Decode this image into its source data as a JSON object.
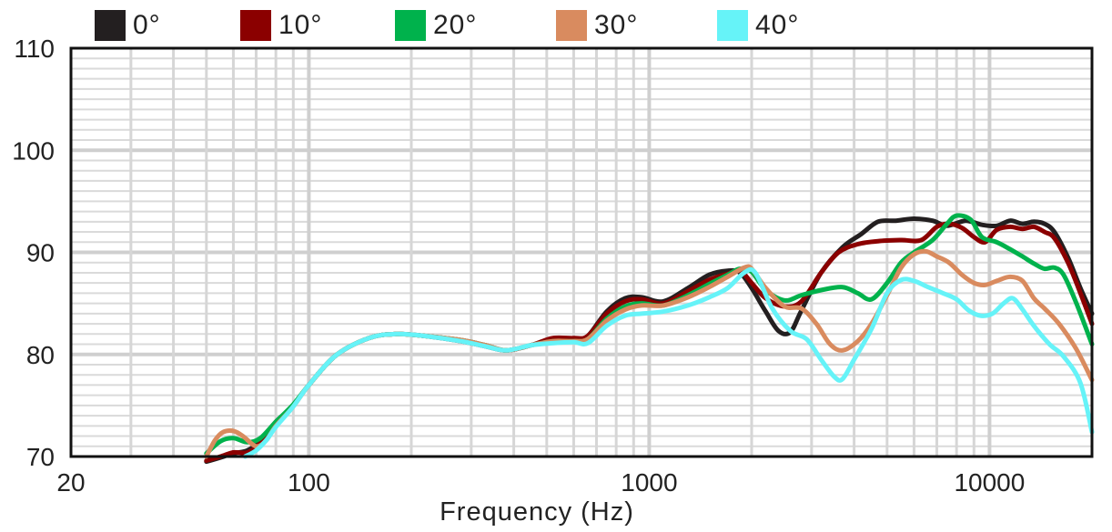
{
  "chart_data": {
    "type": "line",
    "title": "",
    "xlabel": "Frequency (Hz)",
    "ylabel": "",
    "xscale": "log",
    "xlim": [
      20,
      20000
    ],
    "ylim": [
      70,
      110
    ],
    "grid": true,
    "legend_position": "top",
    "x_tick_labels": [
      {
        "value": 20,
        "label": "20"
      },
      {
        "value": 100,
        "label": "100"
      },
      {
        "value": 1000,
        "label": "1000"
      },
      {
        "value": 10000,
        "label": "10000"
      }
    ],
    "y_tick_labels": [
      {
        "value": 70,
        "label": "70"
      },
      {
        "value": 80,
        "label": "80"
      },
      {
        "value": 90,
        "label": "90"
      },
      {
        "value": 100,
        "label": "100"
      },
      {
        "value": 110,
        "label": "110"
      }
    ],
    "series": [
      {
        "name": "0°",
        "color": "#231f20",
        "points": [
          [
            50,
            69.5
          ],
          [
            55,
            69.9
          ],
          [
            60,
            70.3
          ],
          [
            66,
            70.6
          ],
          [
            72,
            71.5
          ],
          [
            80,
            73.4
          ],
          [
            90,
            75.0
          ],
          [
            100,
            77.0
          ],
          [
            120,
            79.9
          ],
          [
            150,
            81.6
          ],
          [
            180,
            82.0
          ],
          [
            220,
            81.8
          ],
          [
            280,
            81.3
          ],
          [
            330,
            80.8
          ],
          [
            380,
            80.4
          ],
          [
            450,
            80.9
          ],
          [
            520,
            81.5
          ],
          [
            600,
            81.4
          ],
          [
            660,
            81.8
          ],
          [
            750,
            84.2
          ],
          [
            850,
            85.5
          ],
          [
            950,
            85.6
          ],
          [
            1100,
            85.2
          ],
          [
            1300,
            86.5
          ],
          [
            1500,
            87.8
          ],
          [
            1700,
            88.2
          ],
          [
            1850,
            88.0
          ],
          [
            2000,
            86.5
          ],
          [
            2200,
            84.2
          ],
          [
            2400,
            82.3
          ],
          [
            2600,
            82.2
          ],
          [
            2800,
            84.3
          ],
          [
            3200,
            88.0
          ],
          [
            3700,
            90.5
          ],
          [
            4200,
            91.8
          ],
          [
            4700,
            93.0
          ],
          [
            5300,
            93.1
          ],
          [
            6000,
            93.3
          ],
          [
            6800,
            93.1
          ],
          [
            7500,
            92.6
          ],
          [
            8500,
            93.1
          ],
          [
            9500,
            92.7
          ],
          [
            10500,
            92.6
          ],
          [
            11500,
            93.1
          ],
          [
            12500,
            92.8
          ],
          [
            13500,
            93.0
          ],
          [
            14500,
            92.8
          ],
          [
            15500,
            92.0
          ],
          [
            17000,
            89.5
          ],
          [
            18500,
            86.5
          ],
          [
            20000,
            84.0
          ]
        ]
      },
      {
        "name": "10°",
        "color": "#8b0000",
        "points": [
          [
            50,
            69.6
          ],
          [
            55,
            70.0
          ],
          [
            60,
            70.4
          ],
          [
            66,
            70.4
          ],
          [
            72,
            71.3
          ],
          [
            80,
            73.3
          ],
          [
            90,
            75.0
          ],
          [
            100,
            77.0
          ],
          [
            120,
            79.9
          ],
          [
            150,
            81.6
          ],
          [
            180,
            82.0
          ],
          [
            220,
            81.8
          ],
          [
            280,
            81.4
          ],
          [
            330,
            80.9
          ],
          [
            380,
            80.4
          ],
          [
            450,
            80.9
          ],
          [
            520,
            81.6
          ],
          [
            600,
            81.6
          ],
          [
            660,
            81.8
          ],
          [
            750,
            84.0
          ],
          [
            850,
            85.2
          ],
          [
            950,
            85.4
          ],
          [
            1100,
            85.0
          ],
          [
            1300,
            86.2
          ],
          [
            1500,
            87.3
          ],
          [
            1700,
            87.9
          ],
          [
            1850,
            88.2
          ],
          [
            2000,
            87.0
          ],
          [
            2200,
            85.5
          ],
          [
            2500,
            84.7
          ],
          [
            2800,
            85.2
          ],
          [
            3200,
            88.0
          ],
          [
            3600,
            90.0
          ],
          [
            4100,
            90.8
          ],
          [
            4700,
            91.1
          ],
          [
            5500,
            91.2
          ],
          [
            6300,
            91.2
          ],
          [
            7000,
            92.5
          ],
          [
            7600,
            92.8
          ],
          [
            8300,
            92.4
          ],
          [
            9000,
            91.5
          ],
          [
            9700,
            91.0
          ],
          [
            10500,
            92.2
          ],
          [
            11500,
            92.5
          ],
          [
            12500,
            92.3
          ],
          [
            13500,
            92.5
          ],
          [
            14500,
            92.0
          ],
          [
            15500,
            91.4
          ],
          [
            17000,
            89.0
          ],
          [
            18500,
            86.0
          ],
          [
            20000,
            83.0
          ]
        ]
      },
      {
        "name": "20°",
        "color": "#00b24c",
        "points": [
          [
            50,
            70.3
          ],
          [
            55,
            71.5
          ],
          [
            60,
            71.8
          ],
          [
            66,
            71.4
          ],
          [
            72,
            71.8
          ],
          [
            80,
            73.4
          ],
          [
            90,
            75.1
          ],
          [
            100,
            77.0
          ],
          [
            120,
            79.9
          ],
          [
            150,
            81.6
          ],
          [
            180,
            82.0
          ],
          [
            220,
            81.8
          ],
          [
            280,
            81.4
          ],
          [
            330,
            80.9
          ],
          [
            380,
            80.4
          ],
          [
            450,
            80.9
          ],
          [
            520,
            81.3
          ],
          [
            600,
            81.3
          ],
          [
            660,
            81.5
          ],
          [
            750,
            83.5
          ],
          [
            850,
            84.7
          ],
          [
            950,
            85.0
          ],
          [
            1100,
            84.8
          ],
          [
            1300,
            85.8
          ],
          [
            1500,
            86.9
          ],
          [
            1700,
            87.8
          ],
          [
            1850,
            88.4
          ],
          [
            2000,
            88.1
          ],
          [
            2200,
            86.3
          ],
          [
            2500,
            85.3
          ],
          [
            2800,
            85.8
          ],
          [
            3200,
            86.3
          ],
          [
            3700,
            86.6
          ],
          [
            4100,
            86.0
          ],
          [
            4500,
            85.4
          ],
          [
            5000,
            87.0
          ],
          [
            5500,
            89.0
          ],
          [
            6000,
            90.0
          ],
          [
            6800,
            91.2
          ],
          [
            7500,
            92.8
          ],
          [
            8000,
            93.6
          ],
          [
            8800,
            93.2
          ],
          [
            9500,
            91.5
          ],
          [
            10500,
            91.0
          ],
          [
            11500,
            90.3
          ],
          [
            12500,
            89.6
          ],
          [
            13500,
            88.9
          ],
          [
            14500,
            88.4
          ],
          [
            15500,
            88.5
          ],
          [
            16500,
            87.8
          ],
          [
            18000,
            85.0
          ],
          [
            20000,
            81.0
          ]
        ]
      },
      {
        "name": "30°",
        "color": "#d98b5f",
        "points": [
          [
            50,
            70.0
          ],
          [
            53,
            71.6
          ],
          [
            56,
            72.4
          ],
          [
            60,
            72.5
          ],
          [
            64,
            72.0
          ],
          [
            70,
            71.0
          ],
          [
            75,
            71.6
          ],
          [
            80,
            73.0
          ],
          [
            90,
            74.9
          ],
          [
            100,
            77.0
          ],
          [
            120,
            79.9
          ],
          [
            150,
            81.6
          ],
          [
            180,
            82.0
          ],
          [
            220,
            81.8
          ],
          [
            280,
            81.4
          ],
          [
            330,
            80.9
          ],
          [
            380,
            80.4
          ],
          [
            450,
            80.9
          ],
          [
            520,
            81.3
          ],
          [
            600,
            81.3
          ],
          [
            660,
            81.5
          ],
          [
            750,
            83.3
          ],
          [
            850,
            84.4
          ],
          [
            950,
            84.8
          ],
          [
            1100,
            84.8
          ],
          [
            1300,
            85.6
          ],
          [
            1500,
            86.6
          ],
          [
            1700,
            87.6
          ],
          [
            1900,
            88.5
          ],
          [
            2000,
            88.4
          ],
          [
            2200,
            86.5
          ],
          [
            2500,
            84.7
          ],
          [
            2800,
            84.5
          ],
          [
            3100,
            83.0
          ],
          [
            3400,
            81.0
          ],
          [
            3700,
            80.4
          ],
          [
            4100,
            81.3
          ],
          [
            4500,
            83.0
          ],
          [
            5000,
            85.8
          ],
          [
            5500,
            88.5
          ],
          [
            6000,
            89.8
          ],
          [
            6500,
            90.1
          ],
          [
            7000,
            89.6
          ],
          [
            7600,
            89.0
          ],
          [
            8300,
            87.8
          ],
          [
            9000,
            87.0
          ],
          [
            9700,
            86.8
          ],
          [
            10500,
            87.2
          ],
          [
            11500,
            87.6
          ],
          [
            12500,
            87.2
          ],
          [
            13500,
            85.5
          ],
          [
            14500,
            84.5
          ],
          [
            16000,
            83.0
          ],
          [
            18000,
            80.5
          ],
          [
            20000,
            77.5
          ]
        ]
      },
      {
        "name": "40°",
        "color": "#66f3f8",
        "points": [
          [
            65,
            70.0
          ],
          [
            70,
            70.6
          ],
          [
            75,
            71.6
          ],
          [
            80,
            72.9
          ],
          [
            90,
            74.9
          ],
          [
            100,
            77.0
          ],
          [
            120,
            79.9
          ],
          [
            150,
            81.6
          ],
          [
            180,
            82.0
          ],
          [
            220,
            81.8
          ],
          [
            280,
            81.3
          ],
          [
            330,
            80.8
          ],
          [
            380,
            80.4
          ],
          [
            450,
            80.9
          ],
          [
            520,
            81.1
          ],
          [
            600,
            81.2
          ],
          [
            660,
            81.1
          ],
          [
            750,
            82.8
          ],
          [
            850,
            83.8
          ],
          [
            950,
            84.0
          ],
          [
            1100,
            84.2
          ],
          [
            1300,
            84.8
          ],
          [
            1500,
            85.6
          ],
          [
            1700,
            86.5
          ],
          [
            1900,
            88.0
          ],
          [
            2050,
            88.0
          ],
          [
            2300,
            84.5
          ],
          [
            2600,
            82.3
          ],
          [
            2900,
            81.5
          ],
          [
            3200,
            79.5
          ],
          [
            3500,
            77.8
          ],
          [
            3700,
            77.6
          ],
          [
            4000,
            79.5
          ],
          [
            4500,
            82.5
          ],
          [
            5000,
            86.0
          ],
          [
            5500,
            87.3
          ],
          [
            6000,
            87.2
          ],
          [
            6600,
            86.6
          ],
          [
            7300,
            86.0
          ],
          [
            8000,
            85.4
          ],
          [
            8700,
            84.3
          ],
          [
            9400,
            83.8
          ],
          [
            10200,
            84.0
          ],
          [
            11000,
            85.0
          ],
          [
            11700,
            85.5
          ],
          [
            12500,
            84.4
          ],
          [
            13500,
            82.8
          ],
          [
            15000,
            81.0
          ],
          [
            16500,
            79.8
          ],
          [
            18500,
            77.2
          ],
          [
            20000,
            72.4
          ]
        ]
      }
    ]
  }
}
